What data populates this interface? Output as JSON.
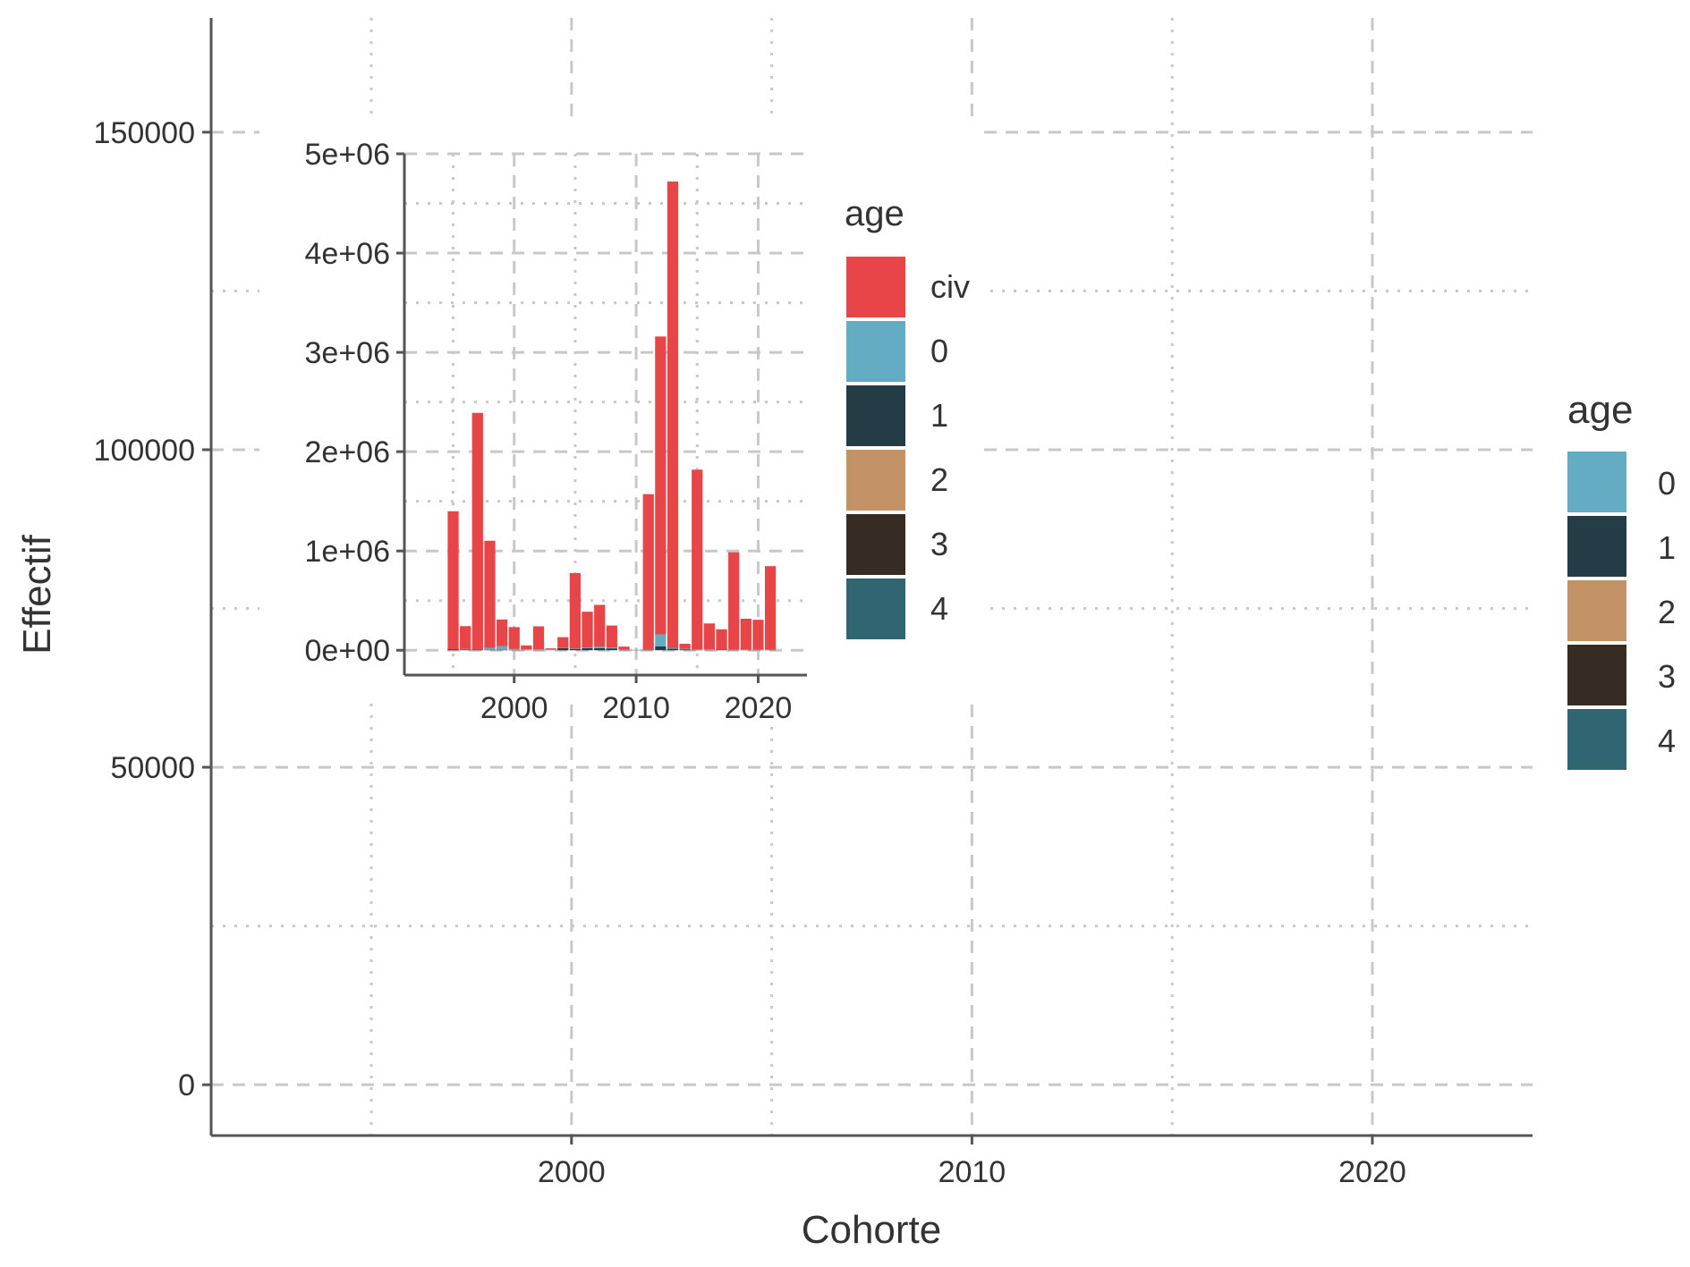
{
  "chart_data": [
    {
      "type": "bar",
      "stacked": true,
      "xlabel": "Cohorte",
      "ylabel": "Effectif",
      "xlim": [
        1991,
        2024
      ],
      "ylim": [
        -8000,
        168000
      ],
      "xticks": [
        2000,
        2010,
        2020
      ],
      "yticks": [
        0,
        50000,
        100000,
        150000
      ],
      "x": [
        1993,
        1994,
        1995,
        1996,
        1997,
        1998,
        1999,
        2000,
        2001,
        2002,
        2003,
        2004,
        2005,
        2006,
        2007,
        2008,
        2009,
        2010,
        2011,
        2012,
        2013,
        2014,
        2015,
        2016,
        2017,
        2018,
        2019,
        2020,
        2021,
        2022,
        2023
      ],
      "series": [
        {
          "name": "4",
          "values": [
            0,
            0,
            0,
            0,
            0,
            0,
            0,
            0,
            0,
            0,
            0,
            0,
            0,
            0,
            0,
            0,
            0,
            0,
            0,
            0,
            0,
            0,
            0,
            0,
            0,
            0,
            0,
            0,
            0,
            0,
            0
          ]
        },
        {
          "name": "3",
          "values": [
            0,
            0,
            0,
            0,
            0,
            0,
            0,
            0,
            0,
            0,
            0,
            0,
            0,
            0,
            0,
            0,
            0,
            0,
            0,
            0,
            0,
            0,
            0,
            0,
            0,
            0,
            0,
            0,
            0,
            0,
            0
          ]
        },
        {
          "name": "2",
          "values": [
            0,
            0,
            0,
            0,
            0,
            0,
            0,
            0,
            0,
            0,
            0,
            0,
            0,
            0,
            0,
            0,
            0,
            0,
            0,
            0,
            0,
            0,
            0,
            0,
            0,
            0,
            0,
            0,
            0,
            0,
            0
          ]
        },
        {
          "name": "1",
          "values": [
            0,
            0,
            0,
            0,
            0,
            0,
            0,
            0,
            0,
            0,
            0,
            0,
            0,
            0,
            0,
            0,
            0,
            0,
            0,
            0,
            0,
            0,
            0,
            0,
            0,
            0,
            0,
            0,
            0,
            0,
            0
          ]
        },
        {
          "name": "0",
          "values": [
            0,
            0,
            0,
            0,
            0,
            0,
            0,
            0,
            0,
            0,
            0,
            0,
            0,
            0,
            0,
            0,
            0,
            0,
            0,
            0,
            0,
            0,
            0,
            0,
            0,
            0,
            0,
            0,
            0,
            0,
            0
          ]
        }
      ],
      "legend": {
        "title": "age",
        "position": "right",
        "items": [
          "0",
          "1",
          "2",
          "3",
          "4"
        ]
      },
      "grid": {
        "major": "dashed",
        "minor": "dotted"
      }
    },
    {
      "type": "bar",
      "stacked": true,
      "inset": true,
      "xlim": [
        1991,
        2024
      ],
      "ylim": [
        -250000,
        5000000
      ],
      "xticks": [
        2000,
        2010,
        2020
      ],
      "yticks": [
        "0e+00",
        "1e+06",
        "2e+06",
        "3e+06",
        "4e+06",
        "5e+06"
      ],
      "x": [
        1995,
        1996,
        1997,
        1998,
        1999,
        2000,
        2001,
        2002,
        2003,
        2004,
        2005,
        2006,
        2007,
        2008,
        2009,
        2010,
        2011,
        2012,
        2013,
        2014,
        2015,
        2016,
        2017,
        2018,
        2019,
        2020,
        2021,
        2022
      ],
      "series": [
        {
          "name": "civ",
          "values": [
            1390000,
            230000,
            2380000,
            1080000,
            270000,
            220000,
            40000,
            230000,
            10000,
            110000,
            760000,
            360000,
            420000,
            220000,
            30000,
            0,
            1560000,
            3000000,
            4700000,
            50000,
            1810000,
            260000,
            200000,
            980000,
            310000,
            300000,
            840000,
            0
          ]
        },
        {
          "name": "0",
          "values": [
            0,
            5000,
            3000,
            18000,
            35000,
            10000,
            6000,
            8000,
            8000,
            2000,
            3000,
            8000,
            15000,
            10000,
            3000,
            1000,
            6000,
            120000,
            6000,
            6000,
            4000,
            6000,
            4000,
            3000,
            3000,
            3000,
            3000,
            0
          ]
        },
        {
          "name": "1",
          "values": [
            10000,
            8000,
            8000,
            5000,
            5000,
            3000,
            3000,
            3000,
            1000,
            20000,
            14000,
            20000,
            22000,
            19000,
            4000,
            3000,
            6000,
            40000,
            15000,
            9000,
            5000,
            4000,
            7000,
            4000,
            5000,
            4000,
            4000,
            0
          ]
        }
      ],
      "legend": {
        "title": "age",
        "position": "top-right",
        "items": [
          "civ",
          "0",
          "1",
          "2",
          "3",
          "4"
        ]
      },
      "grid": {
        "major": "dashed",
        "minor": "dotted"
      }
    }
  ],
  "colors": {
    "civ": "#e84549",
    "0": "#63acc3",
    "1": "#233c45",
    "2": "#c39266",
    "3": "#362c24",
    "4": "#306672"
  }
}
